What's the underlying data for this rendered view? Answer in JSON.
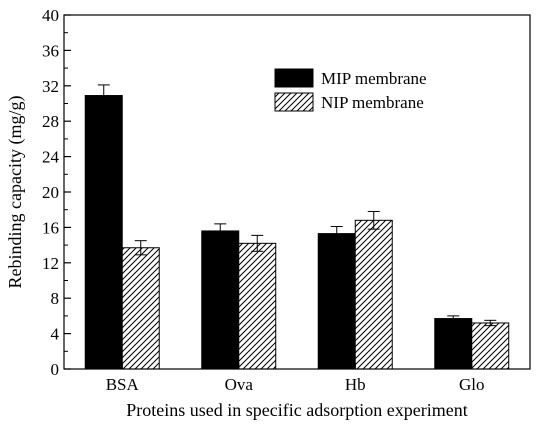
{
  "chart_data": {
    "type": "bar",
    "xlabel": "Proteins used in specific adsorption experiment",
    "ylabel": "Rebinding capacity (mg/g)",
    "ylim": [
      0,
      40
    ],
    "yticks": [
      0,
      4,
      8,
      12,
      16,
      20,
      24,
      28,
      32,
      36,
      40
    ],
    "categories": [
      "BSA",
      "Ova",
      "Hb",
      "Glo"
    ],
    "legend_position": "upper-right",
    "grid": false,
    "series": [
      {
        "name": "MIP membrane",
        "fill": "solid",
        "color": "#000000",
        "values": [
          30.9,
          15.6,
          15.3,
          5.7
        ],
        "errors": [
          1.2,
          0.8,
          0.8,
          0.3
        ]
      },
      {
        "name": "NIP membrane",
        "fill": "diagonal-hatch",
        "color": "#000000",
        "values": [
          13.7,
          14.2,
          16.8,
          5.2
        ],
        "errors": [
          0.8,
          0.9,
          1.0,
          0.3
        ]
      }
    ]
  }
}
